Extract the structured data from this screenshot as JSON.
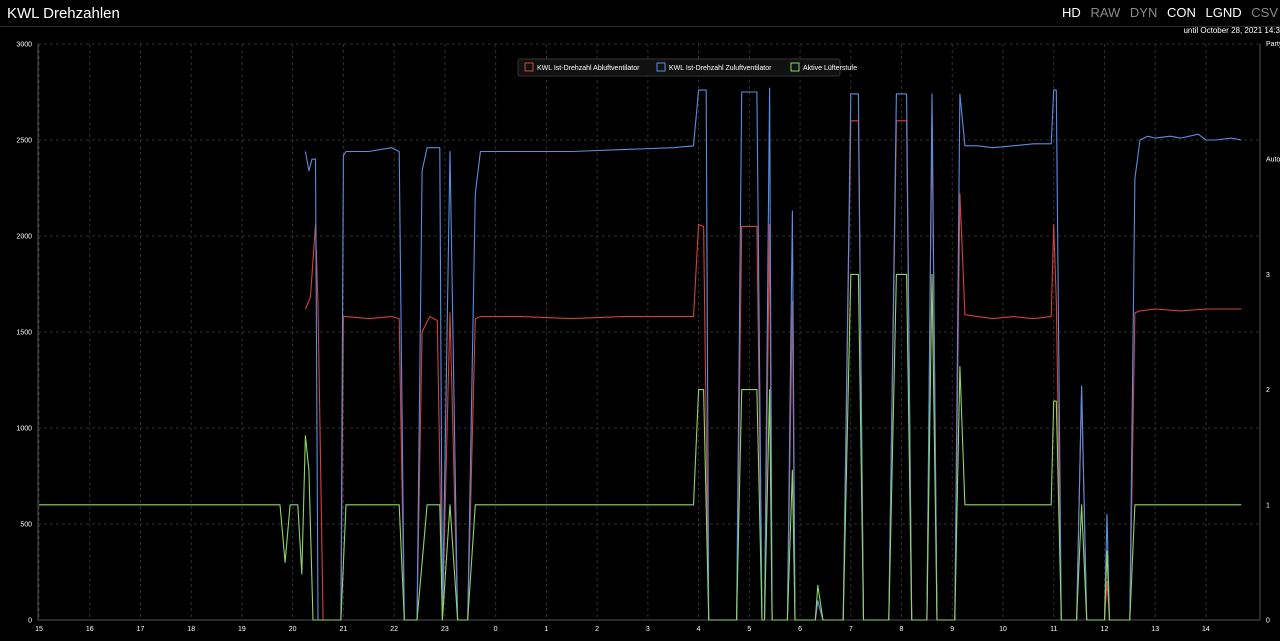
{
  "header": {
    "title": "KWL Drehzahlen",
    "modes": [
      {
        "label": "HD",
        "active": true
      },
      {
        "label": "RAW",
        "active": false
      },
      {
        "label": "DYN",
        "active": false
      },
      {
        "label": "CON",
        "active": true
      },
      {
        "label": "LGND",
        "active": true
      },
      {
        "label": "CSV",
        "active": false
      }
    ],
    "until": "until October 28, 2021 14:3",
    "right_axis_top_label": "Party"
  },
  "colors": {
    "abluft": "#d2423a",
    "zuluft": "#5b8ee0",
    "stufe": "#8fd66a",
    "grid": "#2e2e2e"
  },
  "chart_data": {
    "type": "line",
    "title": "KWL Drehzahlen",
    "x_ticks": [
      "15",
      "16",
      "17",
      "18",
      "19",
      "20",
      "21",
      "22",
      "23",
      "0",
      "1",
      "2",
      "3",
      "4",
      "5",
      "6",
      "7",
      "8",
      "9",
      "10",
      "11",
      "12",
      "13",
      "14"
    ],
    "x_range": [
      0,
      23.7
    ],
    "y_left": {
      "ticks": [
        0,
        500,
        1000,
        1500,
        2000,
        2500,
        3000
      ],
      "range": [
        0,
        3000
      ]
    },
    "y_right": {
      "ticks": [
        "0",
        "1",
        "2",
        "3",
        "Auto",
        "Party"
      ],
      "range": [
        0,
        5
      ]
    },
    "legend": [
      "KWL Ist-Drehzahl Abluftventilator",
      "KWL Ist-Drehzahl Zuluftventilator",
      "Aktive Lüfterstufe"
    ],
    "series": [
      {
        "name": "KWL Ist-Drehzahl Abluftventilator",
        "axis": "left",
        "color": "#d2423a",
        "points": [
          [
            5.25,
            1620
          ],
          [
            5.35,
            1680
          ],
          [
            5.45,
            2060
          ],
          [
            5.5,
            1640
          ],
          [
            5.6,
            0
          ],
          [
            5.95,
            0
          ],
          [
            6.0,
            1580
          ],
          [
            6.05,
            1580
          ],
          [
            6.5,
            1570
          ],
          [
            6.95,
            1580
          ],
          [
            7.1,
            1570
          ],
          [
            7.2,
            0
          ],
          [
            7.45,
            0
          ],
          [
            7.55,
            1500
          ],
          [
            7.7,
            1580
          ],
          [
            7.85,
            1560
          ],
          [
            7.95,
            0
          ],
          [
            8.1,
            1600
          ],
          [
            8.25,
            0
          ],
          [
            8.45,
            0
          ],
          [
            8.6,
            1570
          ],
          [
            8.7,
            1580
          ],
          [
            9.5,
            1580
          ],
          [
            10.5,
            1570
          ],
          [
            11.5,
            1580
          ],
          [
            12.5,
            1580
          ],
          [
            12.9,
            1580
          ],
          [
            13.0,
            2060
          ],
          [
            13.1,
            2050
          ],
          [
            13.2,
            0
          ],
          [
            13.75,
            0
          ],
          [
            13.85,
            2050
          ],
          [
            14.15,
            2050
          ],
          [
            14.25,
            0
          ],
          [
            14.3,
            0
          ],
          [
            14.4,
            2060
          ],
          [
            14.45,
            0
          ],
          [
            14.75,
            0
          ],
          [
            14.85,
            1660
          ],
          [
            14.9,
            0
          ],
          [
            15.3,
            0
          ],
          [
            15.35,
            100
          ],
          [
            15.45,
            0
          ],
          [
            15.85,
            0
          ],
          [
            16.0,
            2600
          ],
          [
            16.15,
            2600
          ],
          [
            16.25,
            0
          ],
          [
            16.75,
            0
          ],
          [
            16.9,
            2600
          ],
          [
            17.1,
            2600
          ],
          [
            17.2,
            0
          ],
          [
            17.5,
            0
          ],
          [
            17.6,
            2620
          ],
          [
            17.7,
            0
          ],
          [
            18.05,
            0
          ],
          [
            18.15,
            2220
          ],
          [
            18.25,
            1590
          ],
          [
            18.5,
            1580
          ],
          [
            18.8,
            1570
          ],
          [
            19.2,
            1580
          ],
          [
            19.6,
            1570
          ],
          [
            19.95,
            1580
          ],
          [
            20.0,
            2060
          ],
          [
            20.05,
            1660
          ],
          [
            20.15,
            0
          ],
          [
            20.45,
            0
          ],
          [
            20.55,
            1200
          ],
          [
            20.65,
            0
          ],
          [
            21.0,
            0
          ],
          [
            21.05,
            200
          ],
          [
            21.1,
            0
          ],
          [
            21.5,
            0
          ],
          [
            21.6,
            1600
          ],
          [
            21.7,
            1610
          ],
          [
            22.0,
            1620
          ],
          [
            22.5,
            1610
          ],
          [
            23.0,
            1620
          ],
          [
            23.5,
            1620
          ],
          [
            23.7,
            1620
          ]
        ]
      },
      {
        "name": "KWL Ist-Drehzahl Zuluftventilator",
        "axis": "left",
        "color": "#5b8ee0",
        "points": [
          [
            5.25,
            2440
          ],
          [
            5.32,
            2340
          ],
          [
            5.38,
            2400
          ],
          [
            5.45,
            2400
          ],
          [
            5.5,
            0
          ],
          [
            5.95,
            0
          ],
          [
            6.0,
            2420
          ],
          [
            6.05,
            2440
          ],
          [
            6.5,
            2440
          ],
          [
            6.95,
            2460
          ],
          [
            7.1,
            2440
          ],
          [
            7.2,
            0
          ],
          [
            7.45,
            0
          ],
          [
            7.55,
            2340
          ],
          [
            7.65,
            2460
          ],
          [
            7.9,
            2460
          ],
          [
            7.95,
            0
          ],
          [
            8.1,
            2440
          ],
          [
            8.25,
            0
          ],
          [
            8.45,
            0
          ],
          [
            8.6,
            2220
          ],
          [
            8.7,
            2440
          ],
          [
            9.5,
            2440
          ],
          [
            10.5,
            2440
          ],
          [
            11.5,
            2450
          ],
          [
            12.5,
            2460
          ],
          [
            12.9,
            2470
          ],
          [
            13.0,
            2760
          ],
          [
            13.15,
            2760
          ],
          [
            13.2,
            0
          ],
          [
            13.75,
            0
          ],
          [
            13.85,
            2750
          ],
          [
            14.15,
            2750
          ],
          [
            14.25,
            0
          ],
          [
            14.3,
            0
          ],
          [
            14.4,
            2770
          ],
          [
            14.45,
            0
          ],
          [
            14.75,
            0
          ],
          [
            14.85,
            2130
          ],
          [
            14.9,
            0
          ],
          [
            15.3,
            0
          ],
          [
            15.35,
            100
          ],
          [
            15.45,
            0
          ],
          [
            15.85,
            0
          ],
          [
            16.0,
            2740
          ],
          [
            16.15,
            2740
          ],
          [
            16.25,
            0
          ],
          [
            16.75,
            0
          ],
          [
            16.9,
            2740
          ],
          [
            17.1,
            2740
          ],
          [
            17.2,
            0
          ],
          [
            17.5,
            0
          ],
          [
            17.6,
            2740
          ],
          [
            17.7,
            0
          ],
          [
            18.05,
            0
          ],
          [
            18.15,
            2740
          ],
          [
            18.25,
            2470
          ],
          [
            18.5,
            2470
          ],
          [
            18.8,
            2460
          ],
          [
            19.2,
            2470
          ],
          [
            19.6,
            2480
          ],
          [
            19.95,
            2480
          ],
          [
            20.0,
            2760
          ],
          [
            20.05,
            2760
          ],
          [
            20.15,
            0
          ],
          [
            20.45,
            0
          ],
          [
            20.55,
            1220
          ],
          [
            20.65,
            0
          ],
          [
            21.0,
            0
          ],
          [
            21.05,
            550
          ],
          [
            21.1,
            0
          ],
          [
            21.5,
            0
          ],
          [
            21.6,
            2300
          ],
          [
            21.7,
            2500
          ],
          [
            21.85,
            2520
          ],
          [
            22.0,
            2510
          ],
          [
            22.3,
            2520
          ],
          [
            22.5,
            2510
          ],
          [
            22.85,
            2530
          ],
          [
            23.0,
            2500
          ],
          [
            23.2,
            2500
          ],
          [
            23.5,
            2510
          ],
          [
            23.7,
            2500
          ]
        ]
      },
      {
        "name": "Aktive Lüfterstufe",
        "axis": "right",
        "color": "#8fd66a",
        "points": [
          [
            0,
            1
          ],
          [
            4.75,
            1
          ],
          [
            4.85,
            0.5
          ],
          [
            4.95,
            1
          ],
          [
            5.1,
            1
          ],
          [
            5.18,
            0.4
          ],
          [
            5.25,
            1.6
          ],
          [
            5.32,
            1.3
          ],
          [
            5.4,
            0
          ],
          [
            5.95,
            0
          ],
          [
            6.05,
            1
          ],
          [
            6.95,
            1
          ],
          [
            7.1,
            1
          ],
          [
            7.2,
            0
          ],
          [
            7.45,
            0
          ],
          [
            7.55,
            0.5
          ],
          [
            7.65,
            1
          ],
          [
            7.9,
            1
          ],
          [
            7.95,
            0
          ],
          [
            8.1,
            1
          ],
          [
            8.25,
            0
          ],
          [
            8.45,
            0
          ],
          [
            8.6,
            1
          ],
          [
            8.7,
            1
          ],
          [
            9.5,
            1
          ],
          [
            10.5,
            1
          ],
          [
            11.5,
            1
          ],
          [
            12.5,
            1
          ],
          [
            12.9,
            1
          ],
          [
            13.0,
            2
          ],
          [
            13.1,
            2
          ],
          [
            13.2,
            0
          ],
          [
            13.75,
            0
          ],
          [
            13.85,
            2
          ],
          [
            14.15,
            2
          ],
          [
            14.25,
            0
          ],
          [
            14.3,
            0
          ],
          [
            14.4,
            2
          ],
          [
            14.45,
            0
          ],
          [
            14.75,
            0
          ],
          [
            14.85,
            1.3
          ],
          [
            14.9,
            0
          ],
          [
            15.3,
            0
          ],
          [
            15.35,
            0.3
          ],
          [
            15.45,
            0
          ],
          [
            15.85,
            0
          ],
          [
            16.0,
            3
          ],
          [
            16.15,
            3
          ],
          [
            16.25,
            0
          ],
          [
            16.75,
            0
          ],
          [
            16.9,
            3
          ],
          [
            17.1,
            3
          ],
          [
            17.2,
            0
          ],
          [
            17.5,
            0
          ],
          [
            17.6,
            3
          ],
          [
            17.7,
            0
          ],
          [
            18.05,
            0
          ],
          [
            18.15,
            2.2
          ],
          [
            18.25,
            1
          ],
          [
            18.5,
            1
          ],
          [
            19.5,
            1
          ],
          [
            19.95,
            1
          ],
          [
            20.0,
            1.9
          ],
          [
            20.05,
            1.9
          ],
          [
            20.15,
            0
          ],
          [
            20.45,
            0
          ],
          [
            20.55,
            1
          ],
          [
            20.65,
            0
          ],
          [
            21.0,
            0
          ],
          [
            21.05,
            0.6
          ],
          [
            21.1,
            0
          ],
          [
            21.5,
            0
          ],
          [
            21.6,
            1
          ],
          [
            22.0,
            1
          ],
          [
            23.0,
            1
          ],
          [
            23.7,
            1
          ]
        ]
      }
    ]
  }
}
